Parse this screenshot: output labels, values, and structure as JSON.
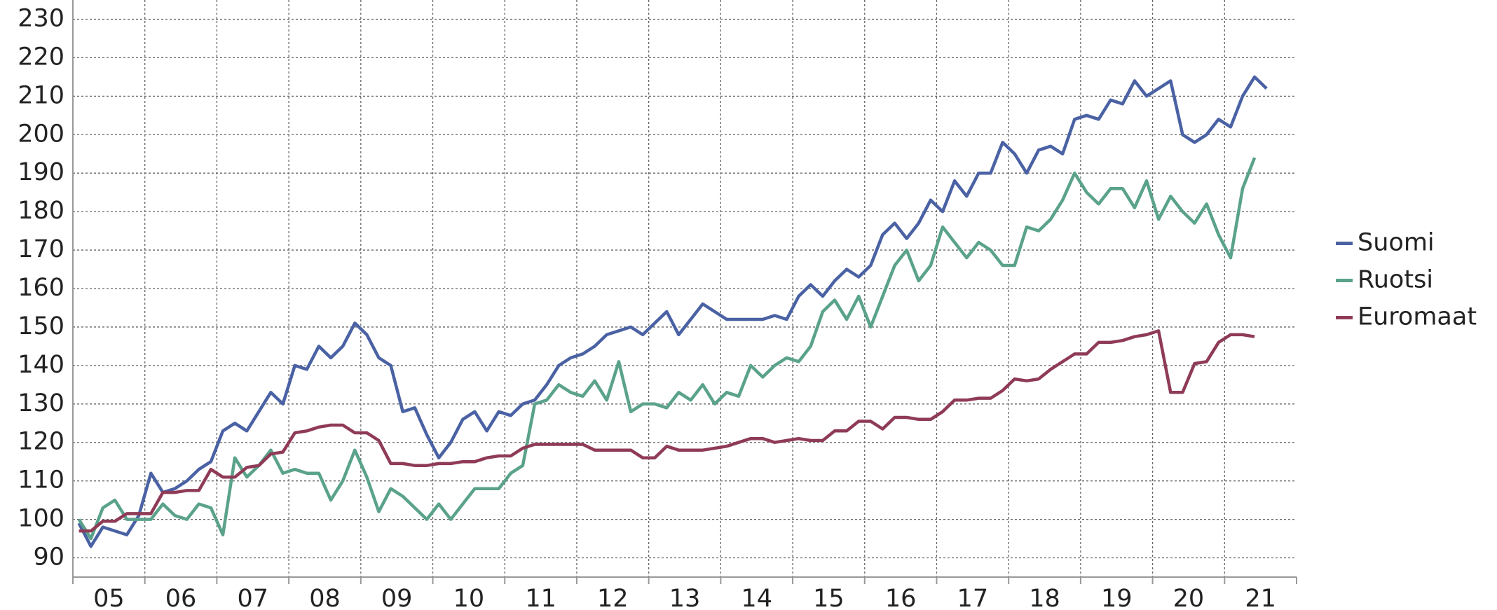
{
  "chart_data": {
    "type": "line",
    "categories": [
      null,
      null,
      null,
      "05",
      null,
      null,
      null,
      null,
      null,
      "06",
      null,
      null,
      null,
      null,
      null,
      "07",
      null,
      null,
      null,
      null,
      null,
      "08",
      null,
      null,
      null,
      null,
      null,
      "09",
      null,
      null,
      null,
      null,
      null,
      "10",
      null,
      null,
      null,
      null,
      null,
      "11",
      null,
      null,
      null,
      null,
      null,
      "12",
      null,
      null,
      null,
      null,
      null,
      "13",
      null,
      null,
      null,
      null,
      null,
      "14",
      null,
      null,
      null,
      null,
      null,
      "15",
      null,
      null,
      null,
      null,
      null,
      "16",
      null,
      null,
      null,
      null,
      null,
      "17",
      null,
      null,
      null,
      null,
      null,
      "18",
      null,
      null,
      null,
      null,
      null,
      "19",
      null,
      null,
      null,
      null,
      null,
      "20",
      null,
      null,
      null,
      null,
      null,
      "21"
    ],
    "series": [
      {
        "name": "Suomi",
        "color": "#4a62a4",
        "values": [
          99,
          93,
          98,
          97,
          96,
          101,
          112,
          107,
          108,
          110,
          113,
          115,
          123,
          125,
          123,
          128,
          133,
          130,
          140,
          139,
          145,
          142,
          145,
          151,
          148,
          142,
          140,
          128,
          129,
          122,
          116,
          120,
          126,
          128,
          123,
          128,
          127,
          130,
          131,
          135,
          140,
          142,
          143,
          145,
          148,
          149,
          150,
          148,
          151,
          154,
          148,
          152,
          156,
          154,
          152,
          152,
          152,
          152,
          153,
          152,
          158,
          161,
          158,
          162,
          165,
          163,
          166,
          174,
          177,
          173,
          177,
          183,
          180,
          188,
          184,
          190,
          190,
          198,
          195,
          190,
          196,
          197,
          195,
          204,
          205,
          204,
          209,
          208,
          214,
          210,
          212,
          214,
          200,
          198,
          200,
          204,
          202,
          210,
          215,
          212
        ]
      },
      {
        "name": "Ruotsi",
        "color": "#5aa28b",
        "values": [
          100,
          95,
          103,
          105,
          100,
          100,
          100,
          104,
          101,
          100,
          104,
          103,
          96,
          116,
          111,
          114,
          118,
          112,
          113,
          112,
          112,
          105,
          110,
          118,
          111,
          102,
          108,
          106,
          103,
          100,
          104,
          100,
          104,
          108,
          108,
          108,
          112,
          114,
          130,
          131,
          135,
          133,
          132,
          136,
          131,
          141,
          128,
          130,
          130,
          129,
          133,
          131,
          135,
          130,
          133,
          132,
          140,
          137,
          140,
          142,
          141,
          145,
          154,
          157,
          152,
          158,
          150,
          158,
          166,
          170,
          162,
          166,
          176,
          172,
          168,
          172,
          170,
          166,
          166,
          176,
          175,
          178,
          183,
          190,
          185,
          182,
          186,
          186,
          181,
          188,
          178,
          184,
          180,
          177,
          182,
          174,
          168,
          186,
          194,
          null
        ]
      },
      {
        "name": "Euromaat",
        "color": "#8f3b56",
        "values": [
          97,
          97,
          99.5,
          99.5,
          101.5,
          101.5,
          101.5,
          107,
          107,
          107.5,
          107.5,
          113,
          111,
          111,
          113.5,
          114,
          117,
          117.5,
          122.5,
          123,
          124,
          124.5,
          124.5,
          122.5,
          122.5,
          120.5,
          114.5,
          114.5,
          114,
          114,
          114.5,
          114.5,
          115,
          115,
          116,
          116.5,
          116.5,
          118.5,
          119.5,
          119.5,
          119.5,
          119.5,
          119.5,
          118,
          118,
          118,
          118,
          116,
          116,
          119,
          118,
          118,
          118,
          118.5,
          119,
          120,
          121,
          121,
          120,
          120.5,
          121,
          120.5,
          120.5,
          123,
          123,
          125.5,
          125.5,
          123.5,
          126.5,
          126.5,
          126,
          126,
          128,
          131,
          131,
          131.5,
          131.5,
          133.5,
          136.5,
          136,
          136.5,
          139,
          141,
          143,
          143,
          146,
          146,
          146.5,
          147.5,
          148,
          149,
          133,
          133,
          140.5,
          141,
          146,
          148,
          148,
          147.5,
          null
        ]
      }
    ],
    "ylim": [
      85,
      233
    ],
    "yticks": [
      90,
      100,
      110,
      120,
      130,
      140,
      150,
      160,
      170,
      180,
      190,
      200,
      210,
      220,
      230
    ],
    "grid": true,
    "legend": "right"
  }
}
